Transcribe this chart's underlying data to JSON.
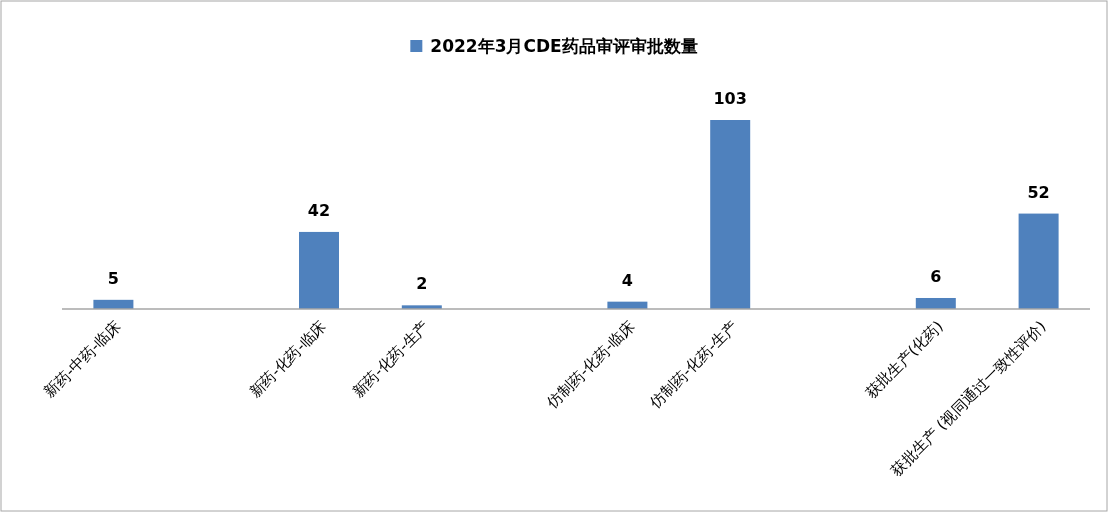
{
  "chart_data": {
    "type": "bar",
    "categories": [
      "新药-中药-临床",
      null,
      "新药-化药-临床",
      "新药-化药-生产",
      null,
      "仿制药-化药-临床",
      "仿制药-化药-生产",
      null,
      "获批生产(化药)",
      "获批生产 (视同通过一致性评价)"
    ],
    "series": [
      {
        "name": "2022年3月CDE药品审评审批数量",
        "color": "#4f81bd",
        "values": [
          5,
          null,
          42,
          2,
          null,
          4,
          103,
          null,
          6,
          52
        ]
      }
    ],
    "data_labels": true,
    "legend": "top"
  }
}
